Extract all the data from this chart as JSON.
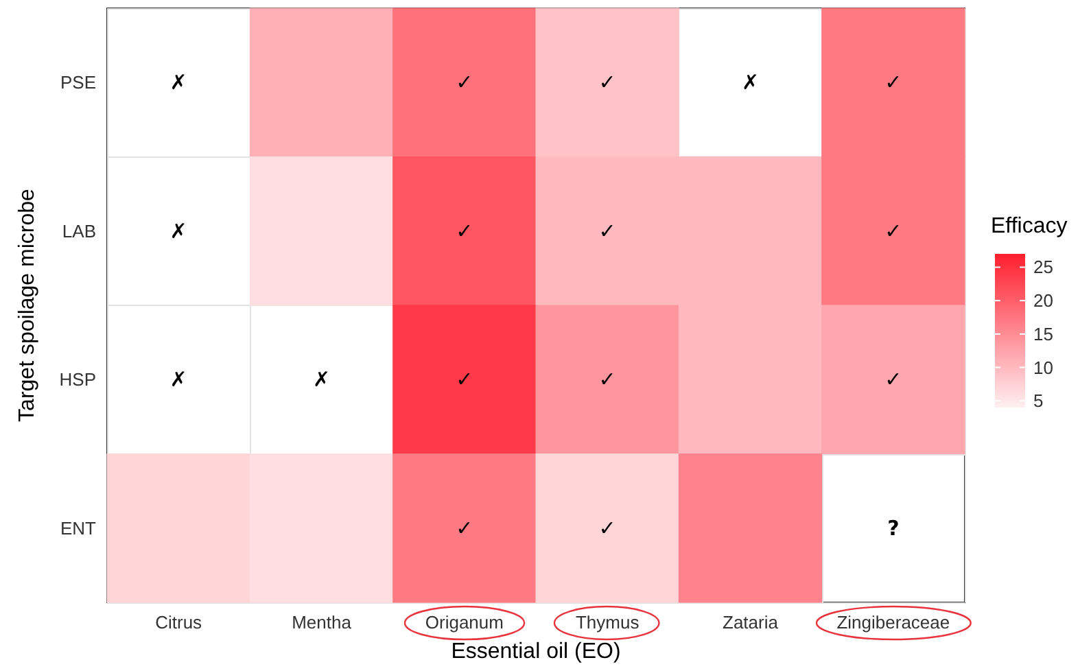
{
  "chart_data": {
    "type": "heatmap",
    "xlabel": "Essential oil (EO)",
    "ylabel": "Target spoilage microbe",
    "clabel": "Efficacy",
    "categories": [
      "Citrus",
      "Mentha",
      "Origanum",
      "Thymus",
      "Zataria",
      "Zingiberaceae"
    ],
    "y_categories": [
      "PSE",
      "LAB",
      "HSP",
      "ENT"
    ],
    "cells": [
      [
        null,
        11,
        18,
        9,
        null,
        17
      ],
      [
        null,
        6,
        21,
        10,
        10,
        17
      ],
      [
        null,
        null,
        24,
        14,
        10,
        12
      ],
      [
        7,
        6,
        17,
        7,
        16,
        null
      ]
    ],
    "cell_labels": [
      [
        "✗",
        null,
        "✓",
        "✓",
        "✗",
        "✓"
      ],
      [
        "✗",
        null,
        "✓",
        "✓",
        null,
        "✓"
      ],
      [
        "✗",
        "✗",
        "✓",
        "✓",
        null,
        "✓"
      ],
      [
        null,
        null,
        "✓",
        "✓",
        null,
        "?"
      ]
    ],
    "clim": [
      4,
      27
    ],
    "cticks": [
      5,
      10,
      15,
      20,
      25
    ],
    "grid": true
  }
}
